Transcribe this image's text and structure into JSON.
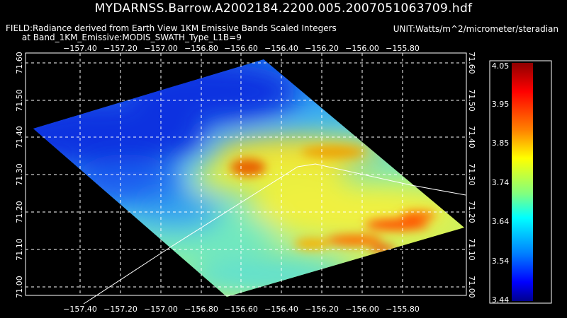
{
  "title": "MYDARNSS.Barrow.A2002184.2200.005.2007051063709.hdf",
  "field_line1": "FIELD:Radiance derived from Earth View 1KM Emissive Bands Scaled Integers",
  "field_line2": "at Band_1KM_Emissive:MODIS_SWATH_Type_L1B=9",
  "unit": "UNIT:Watts/m^2/micrometer/steradian",
  "colors": {
    "background": "#000000",
    "grid": "#ffffff",
    "colorbar_stops": [
      "#00008f",
      "#0000ff",
      "#0080ff",
      "#00ffff",
      "#80ff80",
      "#ffff00",
      "#ff8000",
      "#ff0000",
      "#8f0000"
    ]
  },
  "map": {
    "lon_ticks": [
      "−157.40",
      "−157.20",
      "−157.00",
      "−156.80",
      "−156.60",
      "−156.40",
      "−156.20",
      "−156.00",
      "−155.80"
    ],
    "lat_ticks": [
      "71.00",
      "71.10",
      "71.20",
      "71.30",
      "71.40",
      "71.50",
      "71.60"
    ],
    "lon_range": [
      -157.55,
      -155.65
    ],
    "lat_range": [
      70.95,
      71.62
    ],
    "grid": "dashed"
  },
  "colorbar": {
    "labels": [
      "4.05",
      "3.95",
      "3.85",
      "3.74",
      "3.64",
      "3.54",
      "3.44"
    ],
    "min": 3.44,
    "max": 4.05
  }
}
